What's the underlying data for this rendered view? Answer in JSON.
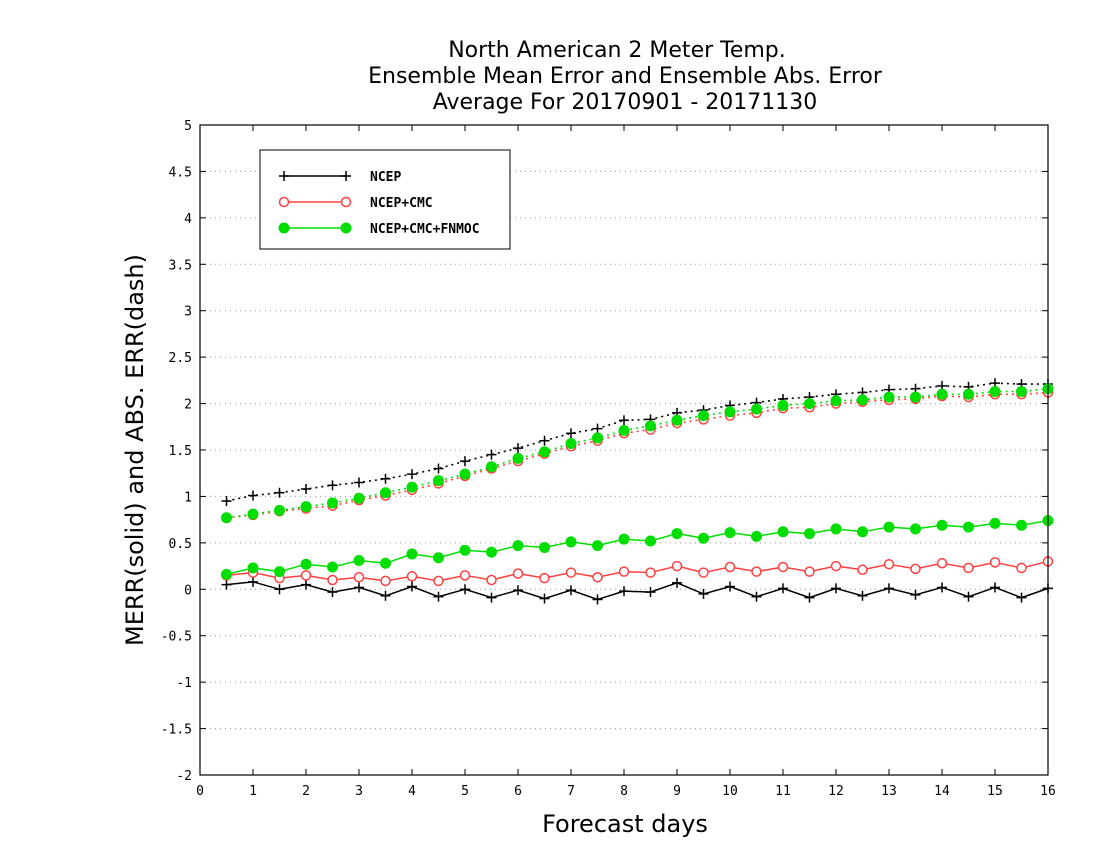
{
  "chart_data": {
    "type": "line",
    "title_lines": [
      "North American 2 Meter Temp.",
      "Ensemble Mean Error and Ensemble Abs. Error",
      "Average For 20170901 - 20171130"
    ],
    "xlabel": "Forecast days",
    "ylabel": "MERR(solid) and ABS. ERR(dash)",
    "xlim": [
      0,
      16
    ],
    "ylim": [
      -2,
      5
    ],
    "x_ticks": [
      "0",
      "1",
      "2",
      "3",
      "4",
      "5",
      "6",
      "7",
      "8",
      "9",
      "10",
      "11",
      "12",
      "13",
      "14",
      "15",
      "16"
    ],
    "y_ticks": [
      "5",
      "4.5",
      "4",
      "3.5",
      "3",
      "2.5",
      "2",
      "1.5",
      "1",
      "0.5",
      "0",
      "-0.5",
      "-1",
      "-1.5",
      "-2"
    ],
    "grid": "horizontal dotted",
    "legend_position": "top-left",
    "x": [
      0.5,
      1,
      1.5,
      2,
      2.5,
      3,
      3.5,
      4,
      4.5,
      5,
      5.5,
      6,
      6.5,
      7,
      7.5,
      8,
      8.5,
      9,
      9.5,
      10,
      10.5,
      11,
      11.5,
      12,
      12.5,
      13,
      13.5,
      14,
      14.5,
      15,
      15.5,
      16
    ],
    "series": [
      {
        "name": "NCEP",
        "color": "#000000",
        "marker": "plus",
        "merr": [
          0.05,
          0.08,
          0.0,
          0.05,
          -0.03,
          0.02,
          -0.07,
          0.03,
          -0.08,
          0.0,
          -0.09,
          -0.01,
          -0.1,
          -0.01,
          -0.11,
          -0.02,
          -0.03,
          0.07,
          -0.05,
          0.03,
          -0.08,
          0.01,
          -0.09,
          0.01,
          -0.07,
          0.01,
          -0.06,
          0.02,
          -0.08,
          0.02,
          -0.09,
          0.01
        ],
        "abs_err": [
          0.95,
          1.01,
          1.04,
          1.08,
          1.12,
          1.15,
          1.19,
          1.24,
          1.3,
          1.38,
          1.45,
          1.52,
          1.6,
          1.68,
          1.73,
          1.82,
          1.83,
          1.9,
          1.93,
          1.98,
          2.01,
          2.05,
          2.07,
          2.1,
          2.12,
          2.15,
          2.16,
          2.19,
          2.18,
          2.22,
          2.21,
          2.21
        ]
      },
      {
        "name": "NCEP+CMC",
        "color": "#ff4040",
        "marker": "open-circle",
        "merr": [
          0.15,
          0.18,
          0.12,
          0.15,
          0.1,
          0.13,
          0.09,
          0.14,
          0.09,
          0.15,
          0.1,
          0.17,
          0.12,
          0.18,
          0.13,
          0.19,
          0.18,
          0.25,
          0.18,
          0.24,
          0.19,
          0.24,
          0.19,
          0.25,
          0.21,
          0.27,
          0.22,
          0.28,
          0.23,
          0.29,
          0.23,
          0.3
        ],
        "abs_err": [
          0.77,
          0.8,
          0.84,
          0.87,
          0.9,
          0.96,
          1.01,
          1.07,
          1.14,
          1.22,
          1.3,
          1.38,
          1.46,
          1.54,
          1.6,
          1.68,
          1.72,
          1.79,
          1.83,
          1.87,
          1.9,
          1.95,
          1.96,
          2.0,
          2.02,
          2.04,
          2.05,
          2.08,
          2.07,
          2.1,
          2.1,
          2.12
        ]
      },
      {
        "name": "NCEP+CMC+FNMOC",
        "color": "#00dd00",
        "marker": "filled-circle",
        "merr": [
          0.16,
          0.23,
          0.19,
          0.27,
          0.24,
          0.31,
          0.28,
          0.38,
          0.34,
          0.42,
          0.4,
          0.47,
          0.45,
          0.51,
          0.47,
          0.54,
          0.52,
          0.6,
          0.55,
          0.61,
          0.57,
          0.62,
          0.6,
          0.65,
          0.62,
          0.67,
          0.65,
          0.69,
          0.67,
          0.71,
          0.69,
          0.74
        ],
        "abs_err": [
          0.77,
          0.81,
          0.85,
          0.89,
          0.93,
          0.98,
          1.04,
          1.1,
          1.17,
          1.24,
          1.32,
          1.41,
          1.48,
          1.57,
          1.63,
          1.71,
          1.76,
          1.82,
          1.87,
          1.91,
          1.94,
          1.98,
          2.0,
          2.03,
          2.04,
          2.07,
          2.07,
          2.1,
          2.1,
          2.13,
          2.13,
          2.16
        ]
      }
    ]
  }
}
